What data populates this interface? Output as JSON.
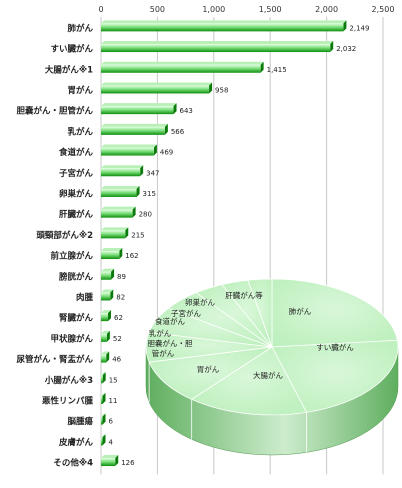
{
  "chart_data": [
    {
      "type": "bar",
      "orientation": "horizontal",
      "xlim": [
        0,
        2500
      ],
      "xticks": [
        "0",
        "500",
        "1,000",
        "1,500",
        "2,000",
        "2,500"
      ],
      "grid": true,
      "categories": [
        "肺がん",
        "すい臓がん",
        "大腸がん※1",
        "胃がん",
        "胆嚢がん・胆管がん",
        "乳がん",
        "食道がん",
        "子宮がん",
        "卵巣がん",
        "肝臓がん",
        "頭頸部がん※2",
        "前立腺がん",
        "膀胱がん",
        "肉腫",
        "腎臓がん",
        "甲状腺がん",
        "尿管がん・腎盂がん",
        "小腸がん※3",
        "悪性リンパ腫",
        "脳腫瘍",
        "皮膚がん",
        "その他※4"
      ],
      "values": [
        2149,
        2032,
        1415,
        958,
        643,
        566,
        469,
        347,
        315,
        280,
        215,
        162,
        89,
        82,
        62,
        52,
        46,
        15,
        11,
        6,
        4,
        126
      ],
      "value_labels": [
        "2,149",
        "2,032",
        "1,415",
        "958",
        "643",
        "566",
        "469",
        "347",
        "315",
        "280",
        "215",
        "162",
        "89",
        "82",
        "62",
        "52",
        "46",
        "15",
        "11",
        "6",
        "4",
        "126"
      ],
      "colors": {
        "bar_dark": "#0c8f0c",
        "bar_light": "#e6ffe6",
        "grid": "#c8c8c8"
      }
    },
    {
      "type": "pie",
      "style": "3d",
      "labels": [
        "肺がん",
        "すい臓がん",
        "大腸がん",
        "胃がん",
        "胆嚢がん・胆管がん",
        "乳がん",
        "食道がん",
        "子宮がん",
        "卵巣がん",
        "肝臓がん等"
      ],
      "values": [
        2149,
        2032,
        1415,
        958,
        643,
        566,
        469,
        347,
        315,
        280
      ],
      "colors": {
        "top": "#bff0bf",
        "side_dark": "#5fae5f",
        "side_light": "#cdeccd",
        "edge": "#ffffff"
      }
    }
  ]
}
